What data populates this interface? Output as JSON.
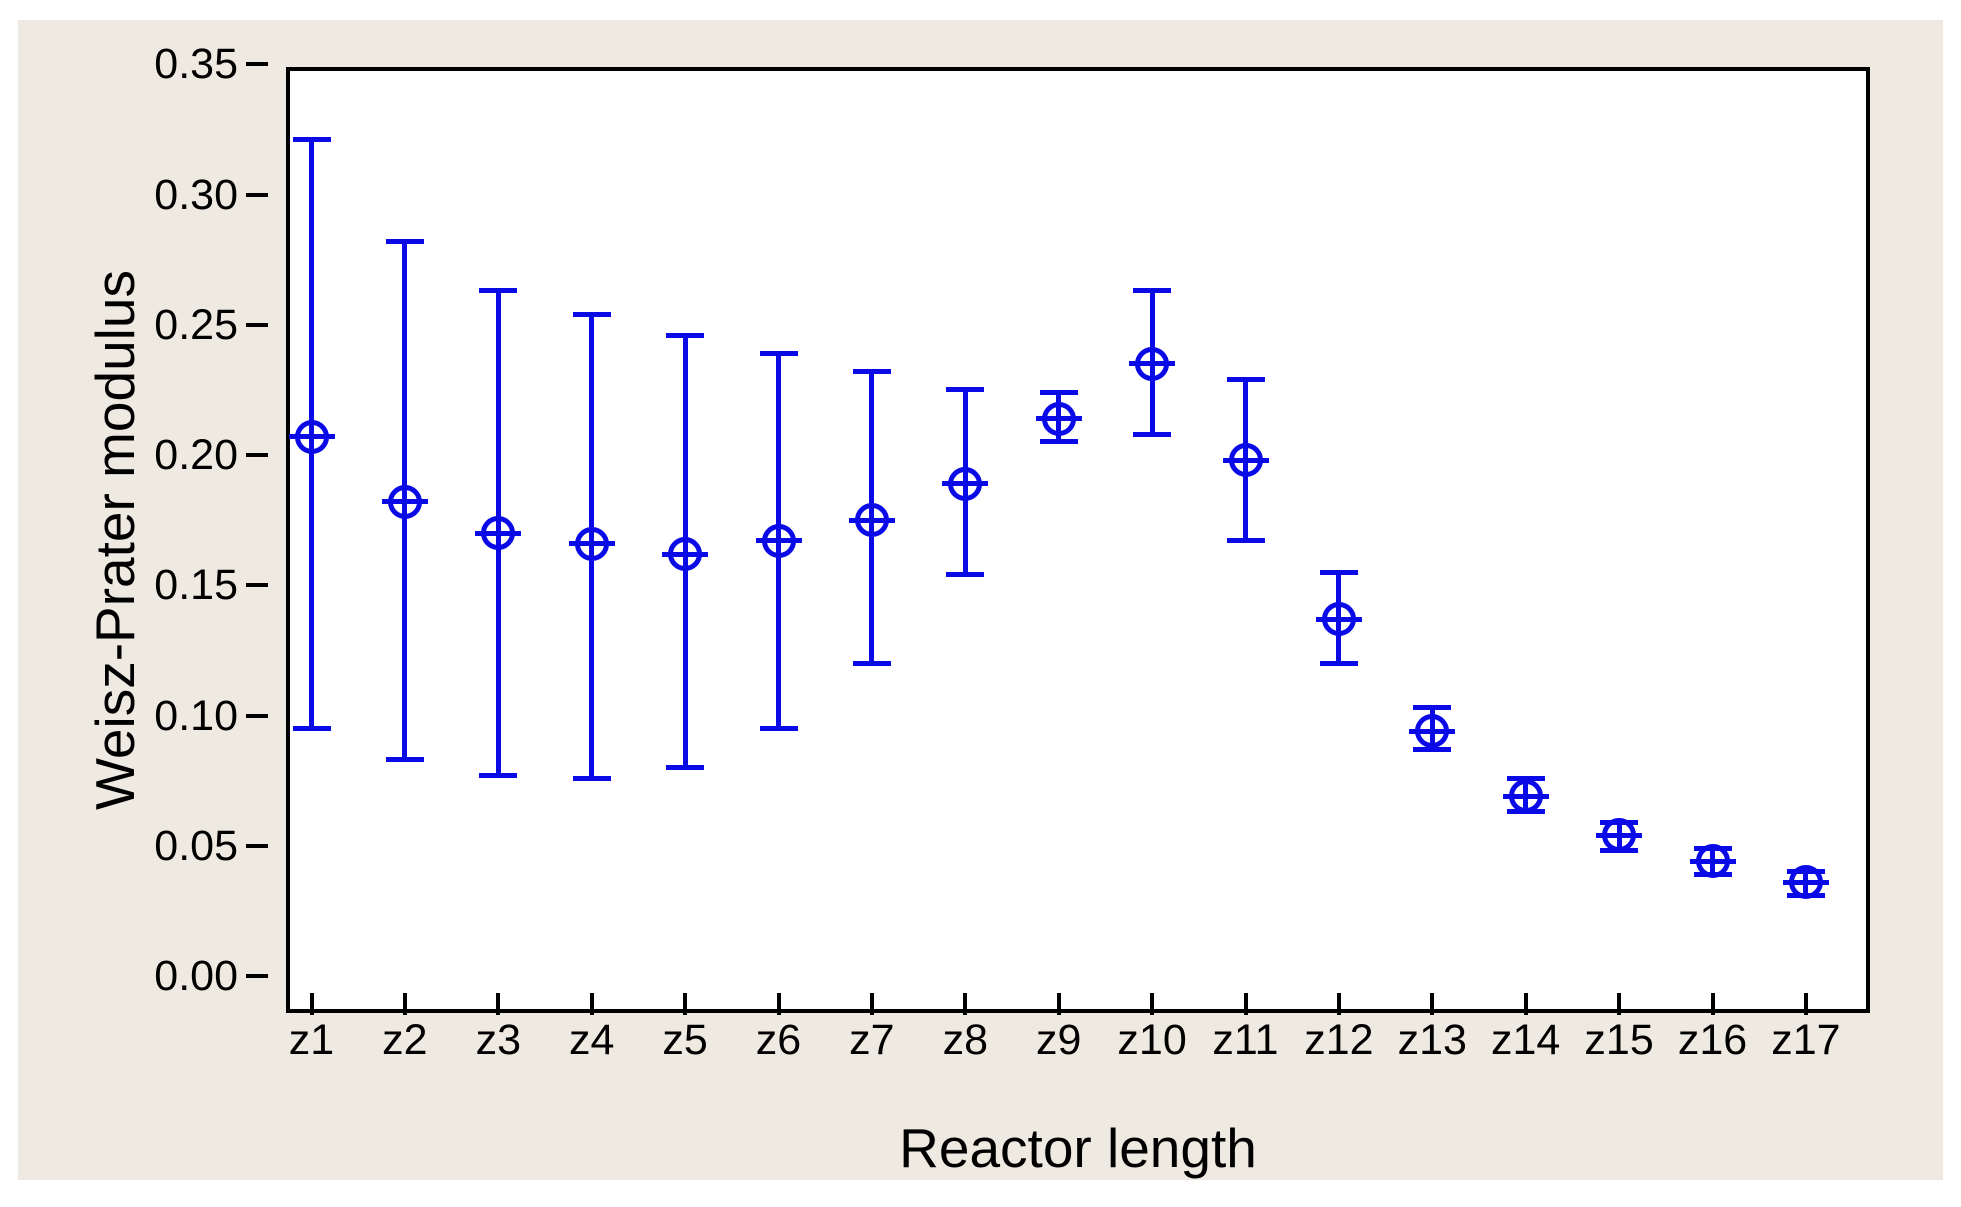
{
  "page": {
    "background": "#ffffff",
    "panel_background": "#EEEAE1",
    "plot_background": "#ffffff",
    "frame_color": "#000000"
  },
  "chart_data": {
    "type": "errorbar-interval-plot",
    "title": "",
    "xlabel": "Reactor length",
    "ylabel": "Weisz-Prater modulus",
    "marker_color": "#0A0AE6",
    "axis_color": "#000000",
    "grid": false,
    "legend": false,
    "ylim": [
      0.0,
      0.35
    ],
    "ytick_step": 0.05,
    "yticks": [
      {
        "v": 0.35,
        "label": "0.35"
      },
      {
        "v": 0.3,
        "label": "0.30"
      },
      {
        "v": 0.25,
        "label": "0.25"
      },
      {
        "v": 0.2,
        "label": "0.20"
      },
      {
        "v": 0.15,
        "label": "0.15"
      },
      {
        "v": 0.1,
        "label": "0.10"
      },
      {
        "v": 0.05,
        "label": "0.05"
      },
      {
        "v": 0.0,
        "label": "0.00"
      }
    ],
    "categories": [
      "z1",
      "z2",
      "z3",
      "z4",
      "z5",
      "z6",
      "z7",
      "z8",
      "z9",
      "z10",
      "z11",
      "z12",
      "z13",
      "z14",
      "z15",
      "z16",
      "z17"
    ],
    "series": [
      {
        "name": "Weisz-Prater modulus",
        "means": [
          0.207,
          0.182,
          0.17,
          0.166,
          0.162,
          0.167,
          0.175,
          0.189,
          0.214,
          0.235,
          0.198,
          0.137,
          0.094,
          0.069,
          0.054,
          0.044,
          0.036
        ],
        "lower": [
          0.095,
          0.083,
          0.077,
          0.076,
          0.08,
          0.095,
          0.12,
          0.154,
          0.205,
          0.208,
          0.167,
          0.12,
          0.087,
          0.063,
          0.048,
          0.039,
          0.031
        ],
        "upper": [
          0.321,
          0.282,
          0.263,
          0.254,
          0.246,
          0.239,
          0.232,
          0.225,
          0.224,
          0.263,
          0.229,
          0.155,
          0.103,
          0.076,
          0.059,
          0.049,
          0.04
        ]
      }
    ]
  }
}
